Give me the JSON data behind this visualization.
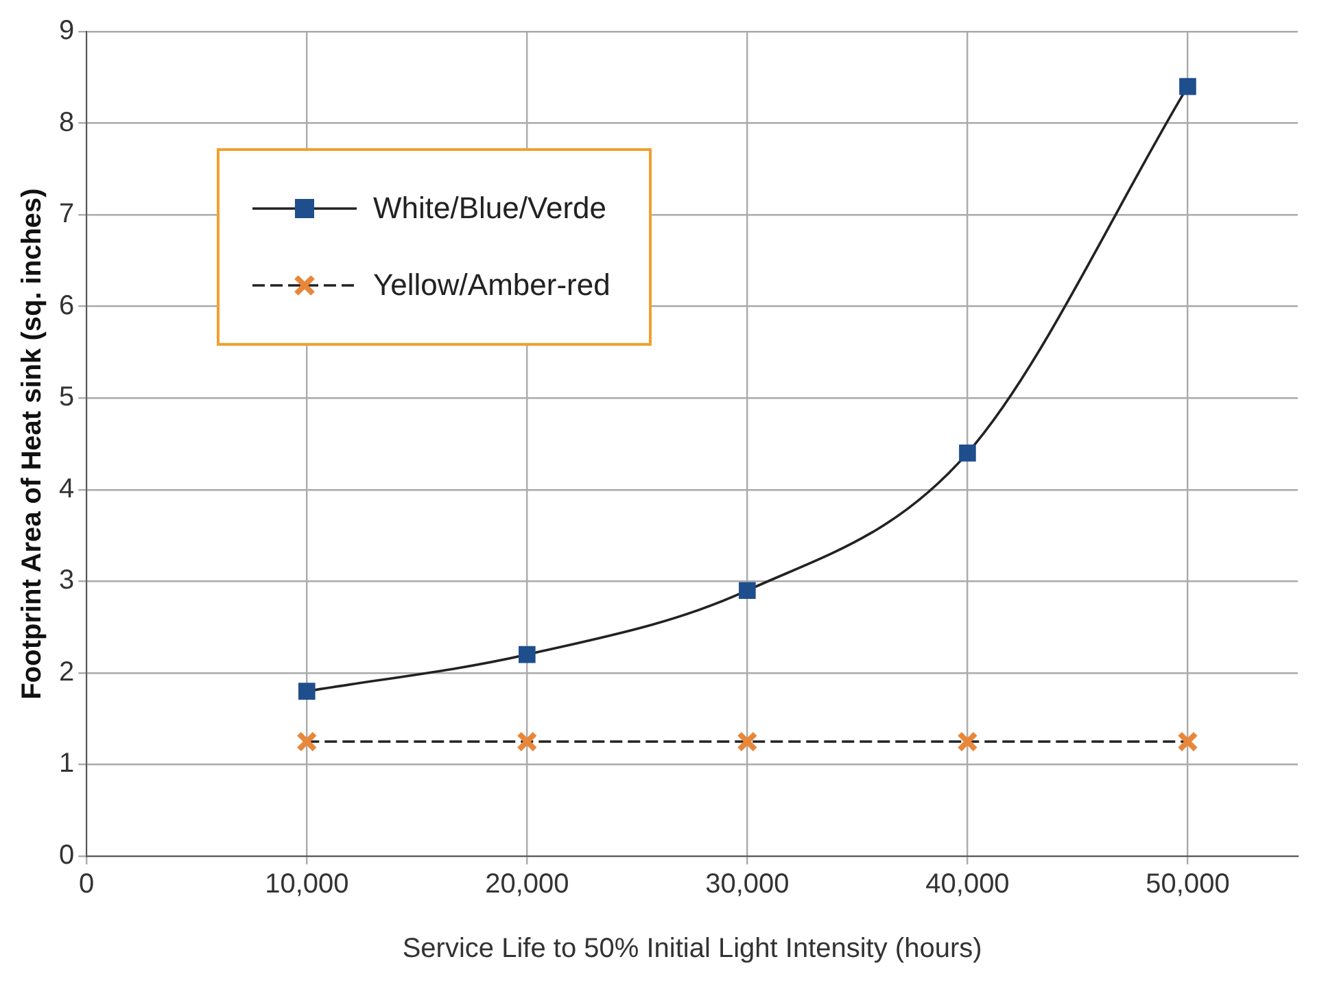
{
  "chart_data": {
    "type": "line",
    "xlabel": "Service Life to 50% Initial Light Intensity (hours)",
    "ylabel": "Footprint Area of Heat sink (sq. inches)",
    "xlim": [
      0,
      55000
    ],
    "xticks": [
      {
        "value": 0,
        "label": "0"
      },
      {
        "value": 10000,
        "label": "10,000"
      },
      {
        "value": 20000,
        "label": "20,000"
      },
      {
        "value": 30000,
        "label": "30,000"
      },
      {
        "value": 40000,
        "label": "40,000"
      },
      {
        "value": 50000,
        "label": "50,000"
      }
    ],
    "ylim": [
      0,
      9
    ],
    "yticks": [
      0,
      1,
      2,
      3,
      4,
      5,
      6,
      7,
      8,
      9
    ],
    "grid": true,
    "legend": "top left",
    "x": [
      10000,
      20000,
      30000,
      40000,
      50000
    ],
    "series": [
      {
        "name": "White/Blue/Verde",
        "color": "#1f4e8c",
        "marker": "square",
        "line_style": "solid",
        "values": [
          1.8,
          2.2,
          2.9,
          4.4,
          8.4
        ]
      },
      {
        "name": "Yellow/Amber-red",
        "color": "#e8873a",
        "marker": "cross",
        "line_style": "dashed",
        "values": [
          1.25,
          1.25,
          1.25,
          1.25,
          1.25
        ]
      }
    ]
  }
}
